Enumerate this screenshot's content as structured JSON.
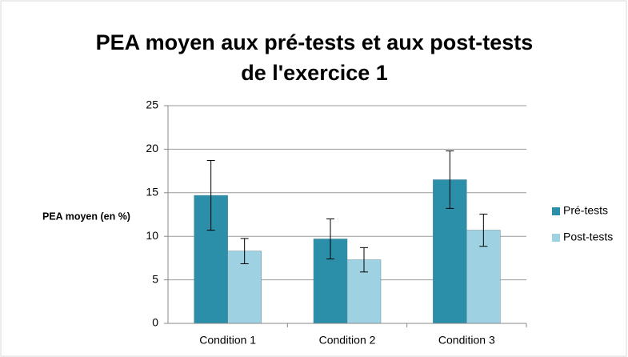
{
  "chart_data": {
    "type": "bar",
    "title": [
      "PEA moyen aux pré-tests et aux post-tests",
      "de l'exercice 1"
    ],
    "y_label": "PEA moyen (en %)",
    "categories": [
      "Condition 1",
      "Condition 2",
      "Condition 3"
    ],
    "series": [
      {
        "name": "Pré-tests",
        "color": "#2b8fa9",
        "values": [
          14.7,
          9.7,
          16.5
        ],
        "errors": [
          4.0,
          2.3,
          3.3
        ]
      },
      {
        "name": "Post-tests",
        "color": "#9ed2e3",
        "values": [
          8.3,
          7.3,
          10.7
        ],
        "errors": [
          1.45,
          1.4,
          1.85
        ]
      }
    ],
    "ylim": [
      0,
      25
    ],
    "yticks": [
      0,
      5,
      10,
      15,
      20,
      25
    ],
    "grid": true,
    "legend": "right"
  }
}
